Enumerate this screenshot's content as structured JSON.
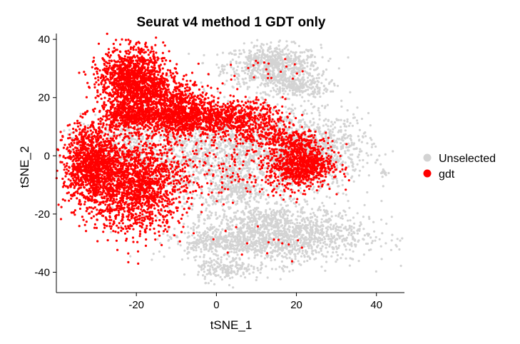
{
  "chart_data": {
    "type": "scatter",
    "title": "Seurat v4 method 1 GDT only",
    "xlabel": "tSNE_1",
    "ylabel": "tSNE_2",
    "xlim": [
      -40,
      47
    ],
    "ylim": [
      -47,
      42
    ],
    "x_ticks": [
      -20,
      0,
      20,
      40
    ],
    "y_ticks": [
      -40,
      -20,
      0,
      20,
      40
    ],
    "x_tick_labels": [
      "-20",
      "0",
      "20",
      "40"
    ],
    "y_tick_labels": [
      "-40",
      "-20",
      "0",
      "20",
      "40"
    ],
    "grid": false,
    "legend_position": "right",
    "series": [
      {
        "name": "Unselected",
        "color": "#d3d3d3",
        "clusters": [
          {
            "cx": 14,
            "cy": 31,
            "sx": 6,
            "sy": 3.5,
            "n": 700
          },
          {
            "cx": 20,
            "cy": 24,
            "sx": 4,
            "sy": 2,
            "n": 250
          },
          {
            "cx": 15,
            "cy": -27,
            "sx": 11,
            "sy": 5,
            "n": 1500
          },
          {
            "cx": 0,
            "cy": -30,
            "sx": 5,
            "sy": 1.5,
            "n": 180
          },
          {
            "cx": 2,
            "cy": -39,
            "sx": 3.5,
            "sy": 2,
            "n": 160
          },
          {
            "cx": 5,
            "cy": -12,
            "sx": 3,
            "sy": 2,
            "n": 150
          },
          {
            "cx": 3,
            "cy": 0,
            "sx": 12,
            "sy": 9,
            "n": 1600
          },
          {
            "cx": 25,
            "cy": 2,
            "sx": 7,
            "sy": 6,
            "n": 700
          },
          {
            "cx": 42,
            "cy": -6,
            "sx": 0.6,
            "sy": 0.5,
            "n": 15
          },
          {
            "cx": -25,
            "cy": 5,
            "sx": 8,
            "sy": 4,
            "n": 300
          }
        ]
      },
      {
        "name": "gdt",
        "color": "#ff0000",
        "clusters": [
          {
            "cx": -21,
            "cy": 27,
            "sx": 4,
            "sy": 5,
            "n": 1100
          },
          {
            "cx": -14,
            "cy": 18,
            "sx": 6,
            "sy": 5,
            "n": 1000
          },
          {
            "cx": -22,
            "cy": 14,
            "sx": 3,
            "sy": 2,
            "n": 300
          },
          {
            "cx": -31,
            "cy": -3,
            "sx": 3.5,
            "sy": 7,
            "n": 1200
          },
          {
            "cx": -20,
            "cy": -10,
            "sx": 6,
            "sy": 8,
            "n": 1600
          },
          {
            "cx": -8,
            "cy": 12,
            "sx": 5,
            "sy": 3,
            "n": 500
          },
          {
            "cx": 5,
            "cy": 13,
            "sx": 6,
            "sy": 3,
            "n": 600
          },
          {
            "cx": 21,
            "cy": -3,
            "sx": 4,
            "sy": 4,
            "n": 800
          },
          {
            "cx": 16,
            "cy": 6,
            "sx": 5,
            "sy": 2,
            "n": 250
          },
          {
            "cx": 4,
            "cy": -3,
            "sx": 10,
            "sy": 7,
            "n": 220
          },
          {
            "cx": 12,
            "cy": 30,
            "sx": 6,
            "sy": 3,
            "n": 22
          },
          {
            "cx": 14,
            "cy": -30,
            "sx": 8,
            "sy": 2,
            "n": 14
          }
        ]
      }
    ]
  }
}
